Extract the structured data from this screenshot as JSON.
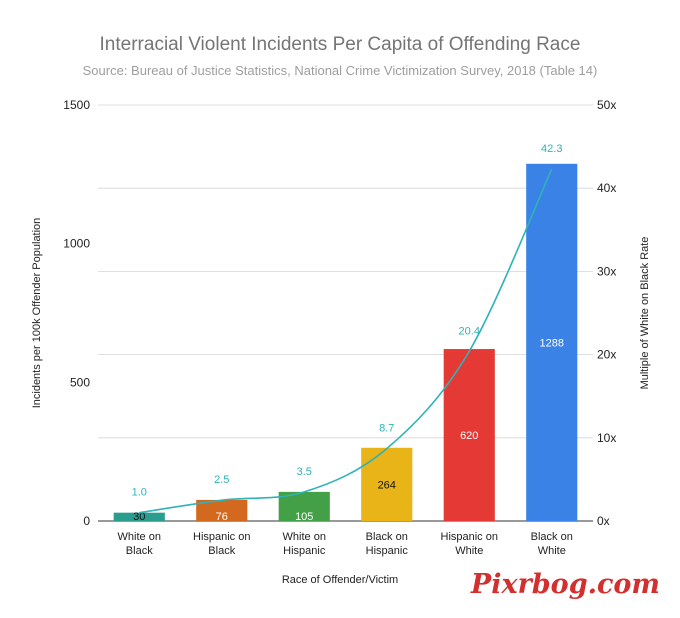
{
  "chart_data": {
    "type": "bar",
    "title": "Interracial Violent Incidents Per Capita of Offending Race",
    "subtitle": "Source: Bureau of Justice Statistics, National Crime Victimization Survey, 2018 (Table 14)",
    "xlabel": "Race of Offender/Victim",
    "ylabel": "Incidents per 100k Offender Population",
    "y2label": "Multiple of White on Black Rate",
    "ylim": [
      0,
      1500
    ],
    "y2lim": [
      0,
      50
    ],
    "yticks": [
      "0",
      "500",
      "1000",
      "1500"
    ],
    "y2ticks": [
      "0x",
      "10x",
      "20x",
      "30x",
      "40x",
      "50x"
    ],
    "grid": true,
    "categories": [
      [
        "White on",
        "Black"
      ],
      [
        "Hispanic on",
        "Black"
      ],
      [
        "White on",
        "Hispanic"
      ],
      [
        "Black on",
        "Hispanic"
      ],
      [
        "Hispanic on",
        "White"
      ],
      [
        "Black on",
        "White"
      ]
    ],
    "series": [
      {
        "type": "bar",
        "values": [
          30,
          76,
          105,
          264,
          620,
          1288
        ],
        "labels": [
          "30",
          "76",
          "105",
          "264",
          "620",
          "1288"
        ],
        "colors": [
          "#2a9d8f",
          "#d2691e",
          "#43a047",
          "#e8b417",
          "#e53935",
          "#3b82e6"
        ]
      },
      {
        "type": "line",
        "axis": "right",
        "values": [
          1.0,
          2.5,
          3.5,
          8.7,
          20.4,
          42.3
        ],
        "labels": [
          "1.0",
          "2.5",
          "3.5",
          "8.7",
          "20.4",
          "42.3"
        ],
        "color": "#2fb3b8"
      }
    ]
  },
  "watermark": "Pixrbog.com"
}
